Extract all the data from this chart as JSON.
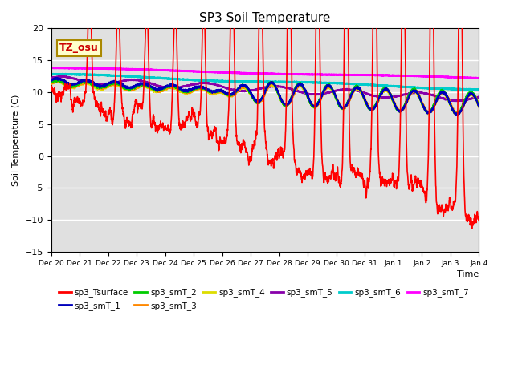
{
  "title": "SP3 Soil Temperature",
  "ylabel": "Soil Temperature (C)",
  "xlabel": "Time",
  "annotation": "TZ_osu",
  "ylim": [
    -15,
    20
  ],
  "xlim": [
    0,
    15
  ],
  "yticks": [
    -15,
    -10,
    -5,
    0,
    5,
    10,
    15,
    20
  ],
  "xtick_labels": [
    "Dec 20",
    "Dec 21",
    "Dec 22",
    "Dec 23",
    "Dec 24",
    "Dec 25",
    "Dec 26",
    "Dec 27",
    "Dec 28",
    "Dec 29",
    "Dec 30",
    "Dec 31",
    "Jan 1",
    "Jan 2",
    "Jan 3",
    "Jan 4"
  ],
  "background_color": "#ffffff",
  "plot_bg_color": "#e0e0e0",
  "grid_color": "#ffffff",
  "series_colors": {
    "sp3_Tsurface": "#ff0000",
    "sp3_smT_1": "#0000bb",
    "sp3_smT_2": "#00cc00",
    "sp3_smT_3": "#ff8800",
    "sp3_smT_4": "#dddd00",
    "sp3_smT_5": "#8800aa",
    "sp3_smT_6": "#00cccc",
    "sp3_smT_7": "#ff00ff"
  }
}
